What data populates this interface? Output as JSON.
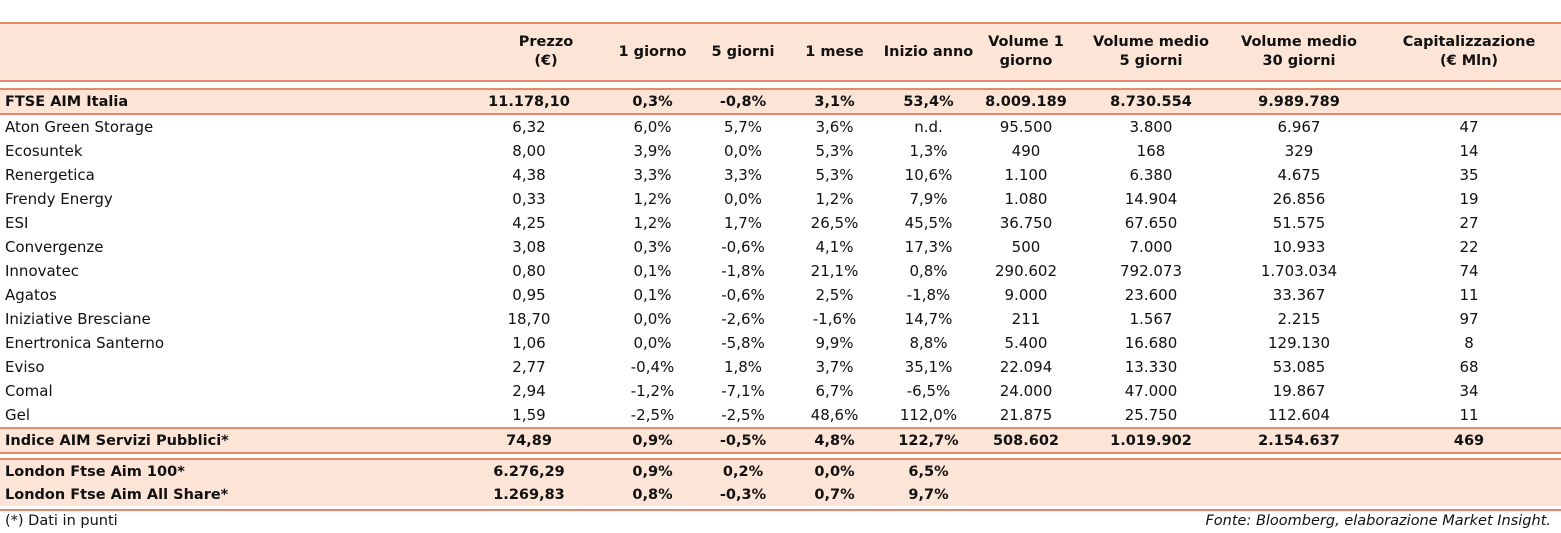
{
  "header": {
    "col0": "",
    "prezzo_1": "Prezzo",
    "prezzo_2": "(€)",
    "g1": "1 giorno",
    "g5": "5 giorni",
    "m1": "1 mese",
    "ia": "Inizio anno",
    "v1_1": "Volume 1",
    "v1_2": "giorno",
    "v5_1": "Volume medio",
    "v5_2": "5 giorni",
    "v30_1": "Volume medio",
    "v30_2": "30 giorni",
    "cap_1": "Capitalizzazione",
    "cap_2": "(€ Mln)"
  },
  "ftse_aim_italia": [
    "FTSE AIM Italia",
    "11.178,10",
    "0,3%",
    "-0,8%",
    "3,1%",
    "53,4%",
    "8.009.189",
    "8.730.554",
    "9.989.789",
    ""
  ],
  "rows": [
    [
      "Aton Green Storage",
      "6,32",
      "6,0%",
      "5,7%",
      "3,6%",
      "n.d.",
      "95.500",
      "3.800",
      "6.967",
      "47"
    ],
    [
      "Ecosuntek",
      "8,00",
      "3,9%",
      "0,0%",
      "5,3%",
      "1,3%",
      "490",
      "168",
      "329",
      "14"
    ],
    [
      "Renergetica",
      "4,38",
      "3,3%",
      "3,3%",
      "5,3%",
      "10,6%",
      "1.100",
      "6.380",
      "4.675",
      "35"
    ],
    [
      "Frendy Energy",
      "0,33",
      "1,2%",
      "0,0%",
      "1,2%",
      "7,9%",
      "1.080",
      "14.904",
      "26.856",
      "19"
    ],
    [
      "ESI",
      "4,25",
      "1,2%",
      "1,7%",
      "26,5%",
      "45,5%",
      "36.750",
      "67.650",
      "51.575",
      "27"
    ],
    [
      "Convergenze",
      "3,08",
      "0,3%",
      "-0,6%",
      "4,1%",
      "17,3%",
      "500",
      "7.000",
      "10.933",
      "22"
    ],
    [
      "Innovatec",
      "0,80",
      "0,1%",
      "-1,8%",
      "21,1%",
      "0,8%",
      "290.602",
      "792.073",
      "1.703.034",
      "74"
    ],
    [
      "Agatos",
      "0,95",
      "0,1%",
      "-0,6%",
      "2,5%",
      "-1,8%",
      "9.000",
      "23.600",
      "33.367",
      "11"
    ],
    [
      "Iniziative Bresciane",
      "18,70",
      "0,0%",
      "-2,6%",
      "-1,6%",
      "14,7%",
      "211",
      "1.567",
      "2.215",
      "97"
    ],
    [
      "Enertronica Santerno",
      "1,06",
      "0,0%",
      "-5,8%",
      "9,9%",
      "8,8%",
      "5.400",
      "16.680",
      "129.130",
      "8"
    ],
    [
      "Eviso",
      "2,77",
      "-0,4%",
      "1,8%",
      "3,7%",
      "35,1%",
      "22.094",
      "13.330",
      "53.085",
      "68"
    ],
    [
      "Comal",
      "2,94",
      "-1,2%",
      "-7,1%",
      "6,7%",
      "-6,5%",
      "24.000",
      "47.000",
      "19.867",
      "34"
    ],
    [
      "Gel",
      "1,59",
      "-2,5%",
      "-2,5%",
      "48,6%",
      "112,0%",
      "21.875",
      "25.750",
      "112.604",
      "11"
    ]
  ],
  "indice_aim": [
    "Indice AIM Servizi Pubblici*",
    "74,89",
    "0,9%",
    "-0,5%",
    "4,8%",
    "122,7%",
    "508.602",
    "1.019.902",
    "2.154.637",
    "469"
  ],
  "london_100": [
    "London Ftse Aim 100*",
    "6.276,29",
    "0,9%",
    "0,2%",
    "0,0%",
    "6,5%",
    "",
    "",
    "",
    ""
  ],
  "london_all": [
    "London Ftse Aim All Share*",
    "1.269,83",
    "0,8%",
    "-0,3%",
    "0,7%",
    "9,7%",
    "",
    "",
    "",
    ""
  ],
  "footer": {
    "note": "(*) Dati in punti",
    "source": "Fonte: Bloomberg, elaborazione Market Insight."
  }
}
